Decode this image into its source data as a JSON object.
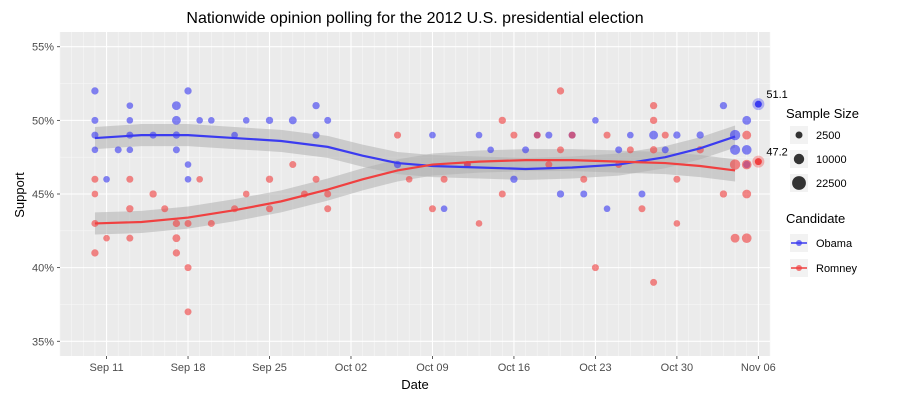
{
  "chart_data": {
    "type": "scatter",
    "title": "Nationwide opinion polling for the 2012 U.S. presidential election",
    "xlabel": "Date",
    "ylabel": "Support",
    "x_type": "date",
    "xlim": [
      "2012-09-07",
      "2012-11-07"
    ],
    "ylim": [
      34,
      56
    ],
    "x_ticks": [
      {
        "date": "2012-09-11",
        "label": "Sep 11"
      },
      {
        "date": "2012-09-18",
        "label": "Sep 18"
      },
      {
        "date": "2012-09-25",
        "label": "Sep 25"
      },
      {
        "date": "2012-10-02",
        "label": "Oct 02"
      },
      {
        "date": "2012-10-09",
        "label": "Oct 09"
      },
      {
        "date": "2012-10-16",
        "label": "Oct 16"
      },
      {
        "date": "2012-10-23",
        "label": "Oct 23"
      },
      {
        "date": "2012-10-30",
        "label": "Oct 30"
      },
      {
        "date": "2012-11-06",
        "label": "Nov 06"
      }
    ],
    "y_ticks": [
      35,
      40,
      45,
      50,
      55
    ],
    "y_tick_suffix": "%",
    "grid": true,
    "background": "#ebebeb",
    "legend_position": "right",
    "size_legend": {
      "title": "Sample Size",
      "entries": [
        {
          "label": "2500",
          "value": 2500
        },
        {
          "label": "10000",
          "value": 10000
        },
        {
          "label": "22500",
          "value": 22500
        }
      ]
    },
    "color_legend": {
      "title": "Candidate",
      "entries": [
        "Obama",
        "Romney"
      ]
    },
    "series": [
      {
        "name": "Obama",
        "color": "#3b3bf0",
        "result": {
          "date": "2012-11-06",
          "value": 51.1,
          "label": "51.1"
        },
        "smooth": [
          [
            "2012-09-10",
            48.8
          ],
          [
            "2012-09-14",
            49.0
          ],
          [
            "2012-09-18",
            49.0
          ],
          [
            "2012-09-22",
            48.8
          ],
          [
            "2012-09-26",
            48.6
          ],
          [
            "2012-09-30",
            48.2
          ],
          [
            "2012-10-03",
            47.6
          ],
          [
            "2012-10-06",
            47.1
          ],
          [
            "2012-10-09",
            46.9
          ],
          [
            "2012-10-13",
            46.8
          ],
          [
            "2012-10-17",
            46.7
          ],
          [
            "2012-10-21",
            46.8
          ],
          [
            "2012-10-25",
            47.0
          ],
          [
            "2012-10-29",
            47.5
          ],
          [
            "2012-11-01",
            48.1
          ],
          [
            "2012-11-04",
            48.9
          ]
        ],
        "points": [
          [
            "2012-09-10",
            52,
            3000
          ],
          [
            "2012-09-10",
            50,
            2500
          ],
          [
            "2012-09-10",
            49,
            2500
          ],
          [
            "2012-09-10",
            48,
            2000
          ],
          [
            "2012-09-11",
            46,
            2000
          ],
          [
            "2012-09-12",
            48,
            2500
          ],
          [
            "2012-09-13",
            51,
            2000
          ],
          [
            "2012-09-13",
            50,
            2000
          ],
          [
            "2012-09-13",
            49,
            2500
          ],
          [
            "2012-09-13",
            48,
            2000
          ],
          [
            "2012-09-15",
            49,
            2500
          ],
          [
            "2012-09-17",
            51,
            6000
          ],
          [
            "2012-09-17",
            50,
            6000
          ],
          [
            "2012-09-17",
            49,
            3000
          ],
          [
            "2012-09-17",
            48,
            2500
          ],
          [
            "2012-09-18",
            52,
            3000
          ],
          [
            "2012-09-18",
            47,
            2000
          ],
          [
            "2012-09-18",
            46,
            2000
          ],
          [
            "2012-09-19",
            50,
            2000
          ],
          [
            "2012-09-20",
            50,
            2000
          ],
          [
            "2012-09-22",
            49,
            2000
          ],
          [
            "2012-09-23",
            50,
            2000
          ],
          [
            "2012-09-25",
            50,
            3000
          ],
          [
            "2012-09-27",
            50,
            4000
          ],
          [
            "2012-09-29",
            51,
            3000
          ],
          [
            "2012-09-29",
            49,
            2500
          ],
          [
            "2012-09-30",
            50,
            2500
          ],
          [
            "2012-10-06",
            47,
            3000
          ],
          [
            "2012-10-09",
            49,
            2000
          ],
          [
            "2012-10-10",
            44,
            2000
          ],
          [
            "2012-10-12",
            47,
            2000
          ],
          [
            "2012-10-13",
            49,
            2000
          ],
          [
            "2012-10-14",
            48,
            2000
          ],
          [
            "2012-10-16",
            46,
            3000
          ],
          [
            "2012-10-17",
            48,
            2500
          ],
          [
            "2012-10-18",
            49,
            2000
          ],
          [
            "2012-10-19",
            49,
            2500
          ],
          [
            "2012-10-20",
            45,
            3000
          ],
          [
            "2012-10-21",
            49,
            2500
          ],
          [
            "2012-10-22",
            45,
            2500
          ],
          [
            "2012-10-23",
            50,
            2000
          ],
          [
            "2012-10-24",
            44,
            2000
          ],
          [
            "2012-10-25",
            48,
            2500
          ],
          [
            "2012-10-26",
            49,
            2000
          ],
          [
            "2012-10-27",
            45,
            2500
          ],
          [
            "2012-10-28",
            49,
            6000
          ],
          [
            "2012-10-29",
            48,
            2500
          ],
          [
            "2012-10-30",
            49,
            3000
          ],
          [
            "2012-11-01",
            49,
            3000
          ],
          [
            "2012-11-03",
            51,
            3000
          ],
          [
            "2012-11-04",
            49,
            10000
          ],
          [
            "2012-11-04",
            48,
            9000
          ],
          [
            "2012-11-05",
            50,
            6000
          ],
          [
            "2012-11-05",
            48,
            8000
          ],
          [
            "2012-11-05",
            47,
            3000
          ]
        ]
      },
      {
        "name": "Romney",
        "color": "#f04040",
        "result": {
          "date": "2012-11-06",
          "value": 47.2,
          "label": "47.2"
        },
        "smooth": [
          [
            "2012-09-10",
            43.0
          ],
          [
            "2012-09-14",
            43.1
          ],
          [
            "2012-09-18",
            43.4
          ],
          [
            "2012-09-22",
            43.9
          ],
          [
            "2012-09-26",
            44.5
          ],
          [
            "2012-09-30",
            45.3
          ],
          [
            "2012-10-03",
            46.0
          ],
          [
            "2012-10-06",
            46.6
          ],
          [
            "2012-10-09",
            47.0
          ],
          [
            "2012-10-13",
            47.2
          ],
          [
            "2012-10-17",
            47.3
          ],
          [
            "2012-10-21",
            47.3
          ],
          [
            "2012-10-25",
            47.2
          ],
          [
            "2012-10-29",
            47.1
          ],
          [
            "2012-11-01",
            46.9
          ],
          [
            "2012-11-04",
            46.6
          ]
        ],
        "points": [
          [
            "2012-09-10",
            46,
            2500
          ],
          [
            "2012-09-10",
            45,
            2000
          ],
          [
            "2012-09-10",
            43,
            2500
          ],
          [
            "2012-09-10",
            41,
            3000
          ],
          [
            "2012-09-11",
            42,
            2000
          ],
          [
            "2012-09-13",
            46,
            2500
          ],
          [
            "2012-09-13",
            44,
            3000
          ],
          [
            "2012-09-13",
            42,
            2500
          ],
          [
            "2012-09-15",
            45,
            3000
          ],
          [
            "2012-09-16",
            44,
            2500
          ],
          [
            "2012-09-17",
            43,
            3000
          ],
          [
            "2012-09-17",
            42,
            4000
          ],
          [
            "2012-09-17",
            41,
            3000
          ],
          [
            "2012-09-18",
            40,
            2500
          ],
          [
            "2012-09-18",
            37,
            2500
          ],
          [
            "2012-09-18",
            43,
            2500
          ],
          [
            "2012-09-19",
            46,
            2000
          ],
          [
            "2012-09-20",
            43,
            2500
          ],
          [
            "2012-09-22",
            44,
            2500
          ],
          [
            "2012-09-23",
            45,
            2000
          ],
          [
            "2012-09-25",
            46,
            3000
          ],
          [
            "2012-09-25",
            44,
            2500
          ],
          [
            "2012-09-27",
            47,
            2500
          ],
          [
            "2012-09-28",
            45,
            2500
          ],
          [
            "2012-09-29",
            46,
            2500
          ],
          [
            "2012-09-30",
            45,
            2500
          ],
          [
            "2012-09-30",
            44,
            2500
          ],
          [
            "2012-10-06",
            49,
            2500
          ],
          [
            "2012-10-07",
            46,
            2000
          ],
          [
            "2012-10-09",
            44,
            2500
          ],
          [
            "2012-10-10",
            46,
            2500
          ],
          [
            "2012-10-12",
            47,
            2500
          ],
          [
            "2012-10-13",
            43,
            2000
          ],
          [
            "2012-10-15",
            50,
            3000
          ],
          [
            "2012-10-15",
            45,
            2500
          ],
          [
            "2012-10-16",
            49,
            2500
          ],
          [
            "2012-10-18",
            49,
            2500
          ],
          [
            "2012-10-19",
            47,
            2500
          ],
          [
            "2012-10-20",
            52,
            3000
          ],
          [
            "2012-10-20",
            48,
            2500
          ],
          [
            "2012-10-21",
            49,
            2500
          ],
          [
            "2012-10-22",
            46,
            2500
          ],
          [
            "2012-10-23",
            40,
            2500
          ],
          [
            "2012-10-24",
            49,
            2500
          ],
          [
            "2012-10-25",
            47,
            2500
          ],
          [
            "2012-10-26",
            48,
            2500
          ],
          [
            "2012-10-27",
            44,
            2500
          ],
          [
            "2012-10-28",
            51,
            3000
          ],
          [
            "2012-10-28",
            50,
            3000
          ],
          [
            "2012-10-28",
            48,
            3000
          ],
          [
            "2012-10-28",
            39,
            2500
          ],
          [
            "2012-10-29",
            49,
            2500
          ],
          [
            "2012-10-30",
            46,
            2500
          ],
          [
            "2012-10-30",
            43,
            2000
          ],
          [
            "2012-11-01",
            48,
            3000
          ],
          [
            "2012-11-03",
            45,
            3000
          ],
          [
            "2012-11-04",
            47,
            10000
          ],
          [
            "2012-11-04",
            42,
            6000
          ],
          [
            "2012-11-05",
            49,
            6000
          ],
          [
            "2012-11-05",
            47,
            8000
          ],
          [
            "2012-11-05",
            45,
            6000
          ],
          [
            "2012-11-05",
            42,
            8000
          ]
        ]
      }
    ]
  }
}
